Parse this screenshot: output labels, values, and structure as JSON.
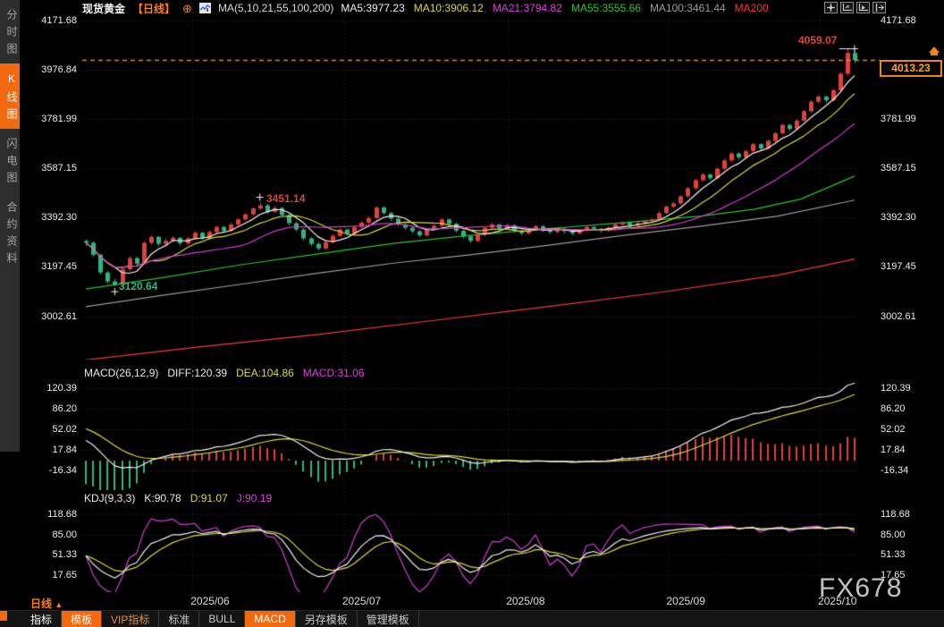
{
  "colors": {
    "bg": "#000000",
    "up": "#e0413c",
    "down": "#2fb483",
    "accent_orange": "#f2690f",
    "price_line": "#f08418",
    "grid": "#2c2c2c",
    "axis_text": "#ececec",
    "ma5": "#f5f5f5",
    "ma10": "#d9d93b",
    "ma21": "#d23cd2",
    "ma55": "#2cc42c",
    "ma100": "#9b9b9b",
    "ma200": "#f23b3b"
  },
  "sidebar": {
    "tabs": [
      {
        "label": "分时图",
        "active": false
      },
      {
        "label": "K线图",
        "active": true
      },
      {
        "label": "闪电图",
        "active": false
      },
      {
        "label": "合约资料",
        "active": false
      }
    ]
  },
  "header": {
    "symbol": "现货黄金",
    "period": "【日线】",
    "add_icon": "⊕",
    "ma_series": "MA(5,10,21,55,100,200)",
    "ma_values": [
      {
        "label": "MA5:3977.23",
        "color": "#f0f0f0"
      },
      {
        "label": "MA10:3906.12",
        "color": "#d9d93b"
      },
      {
        "label": "MA21:3794.82",
        "color": "#e23ce2"
      },
      {
        "label": "MA55:3555.66",
        "color": "#2cc42c"
      },
      {
        "label": "MA100:3461.44",
        "color": "#9b9b9b"
      },
      {
        "label": "MA200",
        "color": "#f23b3b"
      }
    ],
    "window_icons": [
      "pan-icon",
      "axis-settings-icon",
      "axis-scale-icon",
      "collapse-panel-icon"
    ]
  },
  "price_axis": {
    "main": [
      "4171.68",
      "3976.84",
      "3781.99",
      "3587.15",
      "3392.30",
      "3197.45",
      "3002.61"
    ],
    "macd": [
      "120.39",
      "86.20",
      "52.02",
      "17.84",
      "-16.34"
    ],
    "kdj": [
      "118.68",
      "85.00",
      "51.33",
      "17.65"
    ]
  },
  "x_axis": {
    "period_label": "日线",
    "period_arrow": "▲",
    "months": [
      "2025/06",
      "2025/07",
      "2025/08",
      "2025/09",
      "2025/10"
    ]
  },
  "annotations": {
    "session_high": "4059.07",
    "swing_high": "3451.14",
    "swing_low": "3120.64",
    "last_price": "4013.23"
  },
  "macd_panel": {
    "title": "MACD(26,12,9)",
    "diff_label": "DIFF:120.39",
    "dea_label": "DEA:104.86",
    "macd_label": "MACD:31.06"
  },
  "kdj_panel": {
    "title": "KDJ(9,3,3)",
    "k_label": "K:90.78",
    "d_label": "D:91.07",
    "j_label": "J:90.19"
  },
  "watermark": "FX678",
  "bottom_bar": {
    "items": [
      {
        "label": "指标",
        "style": "bright"
      },
      {
        "label": "模板",
        "style": "active"
      },
      {
        "label": "VIP指标",
        "style": "vip"
      },
      {
        "label": "标准",
        "style": "plain"
      },
      {
        "label": "BULL",
        "style": "plain"
      },
      {
        "label": "MACD",
        "style": "active"
      },
      {
        "label": "另存模板",
        "style": "plain"
      },
      {
        "label": "管理模板",
        "style": "plain"
      }
    ]
  },
  "chart_data": {
    "type": "candlestick",
    "title": "现货黄金 日线",
    "price_ticks": [
      4171.68,
      3976.84,
      3781.99,
      3587.15,
      3392.3,
      3197.45,
      3002.61
    ],
    "macd_ticks": [
      120.39,
      86.2,
      52.02,
      17.84,
      -16.34
    ],
    "kdj_ticks": [
      118.68,
      85.0,
      51.33,
      17.65
    ],
    "months": [
      "2025/06",
      "2025/07",
      "2025/08",
      "2025/09",
      "2025/10"
    ],
    "month_indices": [
      14.7,
      35.6,
      58.2,
      80.3,
      101.2
    ],
    "last_price": 4013.23,
    "session_high": 4059.07,
    "swing_high": {
      "value": 3451.14,
      "index": 24
    },
    "swing_low": {
      "value": 3120.64,
      "index": 4
    },
    "candles": [
      [
        3300,
        3306,
        3280,
        3293
      ],
      [
        3293,
        3298,
        3238,
        3245
      ],
      [
        3245,
        3250,
        3168,
        3175
      ],
      [
        3175,
        3182,
        3132,
        3140
      ],
      [
        3140,
        3150,
        3120.64,
        3126
      ],
      [
        3126,
        3195,
        3122,
        3188
      ],
      [
        3188,
        3240,
        3182,
        3232
      ],
      [
        3232,
        3238,
        3198,
        3210
      ],
      [
        3210,
        3298,
        3205,
        3292
      ],
      [
        3292,
        3322,
        3286,
        3316
      ],
      [
        3316,
        3320,
        3280,
        3288
      ],
      [
        3288,
        3308,
        3282,
        3300
      ],
      [
        3300,
        3318,
        3295,
        3312
      ],
      [
        3312,
        3316,
        3282,
        3290
      ],
      [
        3290,
        3315,
        3284,
        3310
      ],
      [
        3310,
        3338,
        3304,
        3332
      ],
      [
        3332,
        3336,
        3302,
        3310
      ],
      [
        3310,
        3340,
        3305,
        3335
      ],
      [
        3335,
        3360,
        3328,
        3355
      ],
      [
        3355,
        3358,
        3332,
        3340
      ],
      [
        3340,
        3370,
        3336,
        3365
      ],
      [
        3365,
        3390,
        3358,
        3385
      ],
      [
        3385,
        3410,
        3380,
        3405
      ],
      [
        3405,
        3433,
        3400,
        3428
      ],
      [
        3428,
        3451.14,
        3422,
        3440
      ],
      [
        3440,
        3446,
        3408,
        3415
      ],
      [
        3415,
        3436,
        3410,
        3430
      ],
      [
        3430,
        3434,
        3396,
        3402
      ],
      [
        3402,
        3408,
        3362,
        3370
      ],
      [
        3370,
        3376,
        3338,
        3345
      ],
      [
        3345,
        3350,
        3302,
        3310
      ],
      [
        3310,
        3315,
        3280,
        3288
      ],
      [
        3288,
        3295,
        3262,
        3270
      ],
      [
        3270,
        3300,
        3265,
        3295
      ],
      [
        3295,
        3326,
        3290,
        3320
      ],
      [
        3320,
        3350,
        3315,
        3345
      ],
      [
        3345,
        3349,
        3322,
        3330
      ],
      [
        3330,
        3360,
        3325,
        3355
      ],
      [
        3355,
        3378,
        3350,
        3372
      ],
      [
        3372,
        3396,
        3366,
        3390
      ],
      [
        3390,
        3438,
        3385,
        3432
      ],
      [
        3432,
        3437,
        3402,
        3410
      ],
      [
        3410,
        3415,
        3380,
        3388
      ],
      [
        3388,
        3393,
        3358,
        3365
      ],
      [
        3365,
        3370,
        3344,
        3352
      ],
      [
        3352,
        3357,
        3330,
        3338
      ],
      [
        3338,
        3343,
        3314,
        3322
      ],
      [
        3322,
        3350,
        3317,
        3345
      ],
      [
        3345,
        3366,
        3340,
        3360
      ],
      [
        3360,
        3390,
        3355,
        3385
      ],
      [
        3385,
        3389,
        3360,
        3368
      ],
      [
        3368,
        3372,
        3333,
        3340
      ],
      [
        3340,
        3344,
        3310,
        3318
      ],
      [
        3318,
        3322,
        3292,
        3300
      ],
      [
        3300,
        3330,
        3295,
        3325
      ],
      [
        3325,
        3357,
        3320,
        3352
      ],
      [
        3352,
        3370,
        3346,
        3365
      ],
      [
        3365,
        3369,
        3342,
        3350
      ],
      [
        3350,
        3367,
        3344,
        3362
      ],
      [
        3362,
        3366,
        3333,
        3340
      ],
      [
        3340,
        3345,
        3322,
        3330
      ],
      [
        3330,
        3350,
        3325,
        3345
      ],
      [
        3345,
        3363,
        3340,
        3358
      ],
      [
        3358,
        3362,
        3335,
        3342
      ],
      [
        3342,
        3347,
        3328,
        3335
      ],
      [
        3335,
        3353,
        3330,
        3348
      ],
      [
        3348,
        3352,
        3330,
        3338
      ],
      [
        3338,
        3343,
        3322,
        3330
      ],
      [
        3330,
        3347,
        3325,
        3342
      ],
      [
        3342,
        3360,
        3337,
        3355
      ],
      [
        3355,
        3359,
        3340,
        3348
      ],
      [
        3348,
        3352,
        3332,
        3340
      ],
      [
        3340,
        3357,
        3335,
        3352
      ],
      [
        3352,
        3370,
        3347,
        3365
      ],
      [
        3365,
        3377,
        3360,
        3372
      ],
      [
        3372,
        3376,
        3352,
        3360
      ],
      [
        3360,
        3375,
        3355,
        3370
      ],
      [
        3370,
        3383,
        3365,
        3378
      ],
      [
        3378,
        3390,
        3372,
        3385
      ],
      [
        3385,
        3415,
        3380,
        3410
      ],
      [
        3410,
        3440,
        3405,
        3435
      ],
      [
        3435,
        3453,
        3428,
        3448
      ],
      [
        3448,
        3481,
        3443,
        3476
      ],
      [
        3476,
        3513,
        3470,
        3508
      ],
      [
        3508,
        3545,
        3502,
        3540
      ],
      [
        3540,
        3567,
        3534,
        3562
      ],
      [
        3562,
        3566,
        3540,
        3548
      ],
      [
        3548,
        3590,
        3543,
        3585
      ],
      [
        3585,
        3623,
        3580,
        3618
      ],
      [
        3618,
        3650,
        3612,
        3645
      ],
      [
        3645,
        3650,
        3622,
        3630
      ],
      [
        3630,
        3660,
        3625,
        3655
      ],
      [
        3655,
        3687,
        3650,
        3682
      ],
      [
        3682,
        3686,
        3658,
        3665
      ],
      [
        3665,
        3700,
        3660,
        3695
      ],
      [
        3695,
        3730,
        3690,
        3725
      ],
      [
        3725,
        3763,
        3720,
        3758
      ],
      [
        3758,
        3762,
        3734,
        3742
      ],
      [
        3742,
        3780,
        3737,
        3775
      ],
      [
        3775,
        3817,
        3770,
        3812
      ],
      [
        3812,
        3855,
        3806,
        3850
      ],
      [
        3850,
        3875,
        3844,
        3870
      ],
      [
        3870,
        3874,
        3846,
        3855
      ],
      [
        3855,
        3900,
        3850,
        3895
      ],
      [
        3895,
        3965,
        3890,
        3960
      ],
      [
        3960,
        4059.07,
        3952,
        4042
      ],
      [
        4042,
        4049,
        4002,
        4013.23
      ]
    ],
    "ma_overlays": {
      "periods": [
        5,
        10,
        21
      ],
      "colors": [
        "#f5f5f5",
        "#d9d93b",
        "#d23cd2"
      ]
    },
    "ma_long": {
      "ma55": {
        "color": "#2cc42c",
        "points": [
          [
            0,
            3110
          ],
          [
            0.1,
            3155
          ],
          [
            0.2,
            3205
          ],
          [
            0.3,
            3248
          ],
          [
            0.4,
            3290
          ],
          [
            0.5,
            3322
          ],
          [
            0.6,
            3348
          ],
          [
            0.7,
            3372
          ],
          [
            0.8,
            3398
          ],
          [
            0.87,
            3425
          ],
          [
            0.93,
            3465
          ],
          [
            1,
            3556
          ]
        ]
      },
      "ma100": {
        "color": "#9b9b9b",
        "points": [
          [
            0,
            3040
          ],
          [
            0.1,
            3085
          ],
          [
            0.2,
            3128
          ],
          [
            0.3,
            3172
          ],
          [
            0.4,
            3212
          ],
          [
            0.5,
            3245
          ],
          [
            0.6,
            3282
          ],
          [
            0.7,
            3322
          ],
          [
            0.8,
            3358
          ],
          [
            0.9,
            3398
          ],
          [
            1,
            3461
          ]
        ]
      },
      "ma200": {
        "color": "#f23b3b",
        "points": [
          [
            0,
            2830
          ],
          [
            0.15,
            2882
          ],
          [
            0.3,
            2930
          ],
          [
            0.45,
            2985
          ],
          [
            0.6,
            3040
          ],
          [
            0.75,
            3098
          ],
          [
            0.9,
            3165
          ],
          [
            1,
            3228
          ]
        ]
      }
    },
    "macd": {
      "params": [
        26,
        12,
        9
      ],
      "latest": {
        "diff": 120.39,
        "dea": 104.86,
        "hist": 31.06
      },
      "seed": {
        "ema12": 3312,
        "ema26": 3274,
        "dea": 58
      },
      "colors": {
        "diff": "#f0f0f0",
        "dea": "#d9d93b",
        "hist_pos": "#e0413c",
        "hist_neg": "#2fb483"
      }
    },
    "kdj": {
      "params": [
        9,
        3,
        3
      ],
      "latest": {
        "k": 90.78,
        "d": 91.07,
        "j": 90.19
      },
      "colors": {
        "k": "#f0f0f0",
        "d": "#d9d93b",
        "j": "#d23cd2"
      }
    }
  }
}
